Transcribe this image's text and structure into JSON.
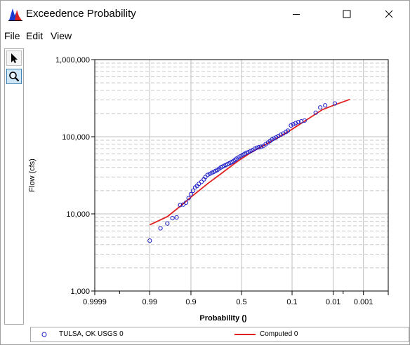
{
  "window": {
    "title": "Exceedence Probability",
    "controls": {
      "minimize": "minimize-icon",
      "maximize": "maximize-icon",
      "close": "close-icon"
    }
  },
  "menu": {
    "items": [
      "File",
      "Edit",
      "View"
    ]
  },
  "toolbar": {
    "tools": [
      "pointer-icon",
      "zoom-icon"
    ],
    "active": "zoom-icon"
  },
  "colors": {
    "observed": "#2020c8",
    "computed": "#e02020",
    "grid": "#c8c8c8"
  },
  "chart_data": {
    "type": "scatter",
    "xlabel": "Probability ()",
    "ylabel": "Flow (cfs)",
    "x_scale": "normal-probability",
    "y_scale": "log",
    "ylim": [
      1000,
      1000000
    ],
    "xlim": [
      0.9999,
      0.0001
    ],
    "x_ticks": [
      "0.9999",
      "0.99",
      "0.9",
      "0.5",
      "0.1",
      "0.01",
      "0.001"
    ],
    "y_ticks": [
      "1,000",
      "10,000",
      "100,000",
      "1,000,000"
    ],
    "grid": true,
    "legend_position": "bottom",
    "series": [
      {
        "name": "TULSA, OK USGS  0",
        "kind": "points",
        "points": [
          [
            0.99,
            4500
          ],
          [
            0.98,
            6500
          ],
          [
            0.97,
            7500
          ],
          [
            0.96,
            8800
          ],
          [
            0.95,
            9000
          ],
          [
            0.94,
            13000
          ],
          [
            0.93,
            13200
          ],
          [
            0.92,
            14000
          ],
          [
            0.91,
            16000
          ],
          [
            0.9,
            18000
          ],
          [
            0.89,
            20000
          ],
          [
            0.88,
            22000
          ],
          [
            0.87,
            23000
          ],
          [
            0.86,
            24500
          ],
          [
            0.845,
            26000
          ],
          [
            0.83,
            28000
          ],
          [
            0.82,
            30000
          ],
          [
            0.805,
            32000
          ],
          [
            0.79,
            33000
          ],
          [
            0.775,
            34000
          ],
          [
            0.76,
            35000
          ],
          [
            0.745,
            36000
          ],
          [
            0.73,
            37000
          ],
          [
            0.715,
            38500
          ],
          [
            0.7,
            40000
          ],
          [
            0.685,
            41000
          ],
          [
            0.67,
            42000
          ],
          [
            0.655,
            43000
          ],
          [
            0.64,
            44000
          ],
          [
            0.625,
            45000
          ],
          [
            0.61,
            46000
          ],
          [
            0.595,
            47000
          ],
          [
            0.58,
            48500
          ],
          [
            0.565,
            50000
          ],
          [
            0.55,
            52000
          ],
          [
            0.53,
            54000
          ],
          [
            0.51,
            56000
          ],
          [
            0.49,
            58000
          ],
          [
            0.47,
            60000
          ],
          [
            0.45,
            62000
          ],
          [
            0.43,
            63000
          ],
          [
            0.41,
            65000
          ],
          [
            0.39,
            67000
          ],
          [
            0.37,
            70000
          ],
          [
            0.35,
            72000
          ],
          [
            0.33,
            73000
          ],
          [
            0.31,
            74000
          ],
          [
            0.29,
            76000
          ],
          [
            0.27,
            80000
          ],
          [
            0.25,
            84000
          ],
          [
            0.235,
            88000
          ],
          [
            0.22,
            92000
          ],
          [
            0.205,
            95000
          ],
          [
            0.19,
            98000
          ],
          [
            0.175,
            102000
          ],
          [
            0.16,
            106000
          ],
          [
            0.145,
            110000
          ],
          [
            0.13,
            115000
          ],
          [
            0.12,
            120000
          ],
          [
            0.105,
            140000
          ],
          [
            0.095,
            145000
          ],
          [
            0.085,
            150000
          ],
          [
            0.075,
            155000
          ],
          [
            0.065,
            158000
          ],
          [
            0.055,
            162000
          ],
          [
            0.03,
            205000
          ],
          [
            0.023,
            240000
          ],
          [
            0.017,
            255000
          ],
          [
            0.009,
            270000
          ]
        ]
      },
      {
        "name": "Computed  0",
        "kind": "line",
        "points": [
          [
            0.99,
            7200
          ],
          [
            0.97,
            9200
          ],
          [
            0.94,
            12500
          ],
          [
            0.9,
            16500
          ],
          [
            0.8,
            25000
          ],
          [
            0.7,
            33000
          ],
          [
            0.6,
            42000
          ],
          [
            0.5,
            52000
          ],
          [
            0.4,
            63000
          ],
          [
            0.3,
            75000
          ],
          [
            0.2,
            92000
          ],
          [
            0.1,
            125000
          ],
          [
            0.05,
            165000
          ],
          [
            0.02,
            225000
          ],
          [
            0.01,
            255000
          ],
          [
            0.003,
            305000
          ]
        ]
      }
    ]
  }
}
